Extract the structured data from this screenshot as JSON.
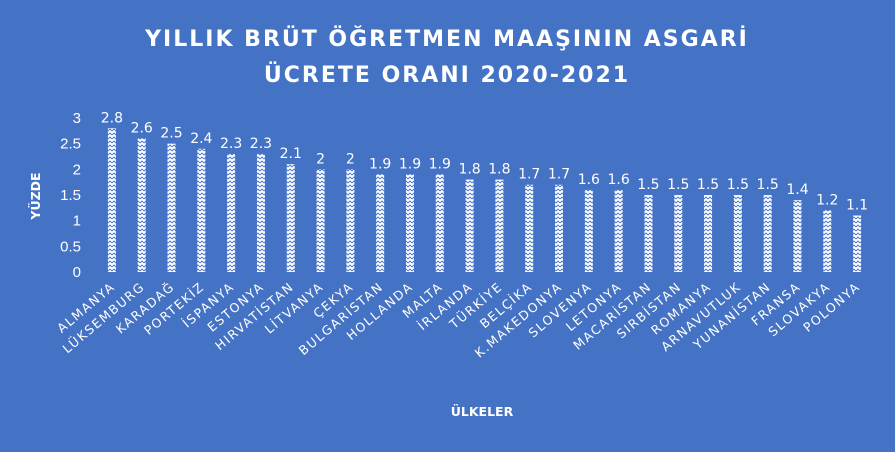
{
  "chart_data": {
    "type": "bar",
    "title_lines": [
      "YILLIK BRÜT ÖĞRETMEN MAAŞININ ASGARİ",
      "ÜCRETE ORANI 2020-2021"
    ],
    "xlabel": "ÜLKELER",
    "ylabel": "YÜZDE",
    "ylim": [
      0,
      3
    ],
    "yticks": [
      0,
      0.5,
      1,
      1.5,
      2,
      2.5,
      3
    ],
    "ytick_labels": [
      "0",
      "0.5",
      "1",
      "1.5",
      "2",
      "2.5",
      "3"
    ],
    "grid": false,
    "legend": "none",
    "categories": [
      "ALMANYA",
      "LÜKSEMBURG",
      "KARADAĞ",
      "PORTEKİZ",
      "İSPANYA",
      "ESTONYA",
      "HIRVATİSTAN",
      "LİTVANYA",
      "ÇEKYA",
      "BULGARİSTAN",
      "HOLLANDA",
      "MALTA",
      "İRLANDA",
      "TÜRKİYE",
      "BELÇİKA",
      "K.MAKEDONYA",
      "SLOVENYA",
      "LETONYA",
      "MACARİSTAN",
      "SIRBİSTAN",
      "ROMANYA",
      "ARNAVUTLUK",
      "YUNANİSTAN",
      "FRANSA",
      "SLOVAKYA",
      "POLONYA"
    ],
    "values": [
      2.8,
      2.6,
      2.5,
      2.4,
      2.3,
      2.3,
      2.1,
      2,
      2,
      1.9,
      1.9,
      1.9,
      1.8,
      1.8,
      1.7,
      1.7,
      1.6,
      1.6,
      1.5,
      1.5,
      1.5,
      1.5,
      1.5,
      1.4,
      1.2,
      1.1
    ],
    "value_labels": [
      "2.8",
      "2.6",
      "2.5",
      "2.4",
      "2.3",
      "2.3",
      "2.1",
      "2",
      "2",
      "1.9",
      "1.9",
      "1.9",
      "1.8",
      "1.8",
      "1.7",
      "1.7",
      "1.6",
      "1.6",
      "1.5",
      "1.5",
      "1.5",
      "1.5",
      "1.5",
      "1.4",
      "1.2",
      "1.1"
    ],
    "colors": {
      "background": "#4472C4",
      "bar_fill": "#ffffff",
      "bar_pattern": "#4472C4",
      "text": "#ffffff"
    }
  }
}
